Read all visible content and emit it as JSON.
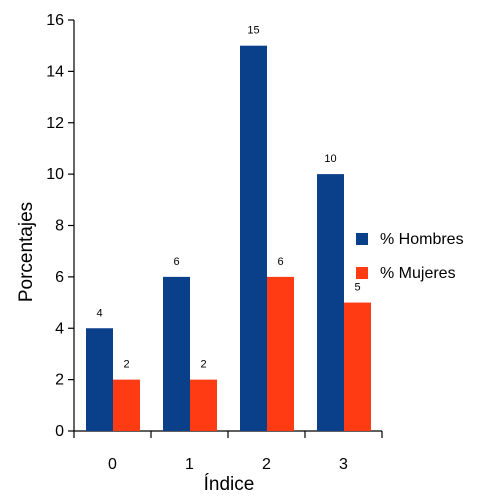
{
  "chart_data": {
    "type": "bar",
    "categories": [
      "0",
      "1",
      "2",
      "3"
    ],
    "series": [
      {
        "name": "% Hombres",
        "values": [
          4,
          6,
          15,
          10
        ],
        "color": "#0a3f8a"
      },
      {
        "name": "% Mujeres",
        "values": [
          2,
          2,
          6,
          5
        ],
        "color": "#ff3b14"
      }
    ],
    "xlabel": "Índice",
    "ylabel": "Porcentajes",
    "ylim": [
      0,
      16
    ],
    "yticks": [
      0,
      2,
      4,
      6,
      8,
      10,
      12,
      14,
      16
    ],
    "legend_position": "right",
    "grid": false,
    "data_labels": true
  }
}
